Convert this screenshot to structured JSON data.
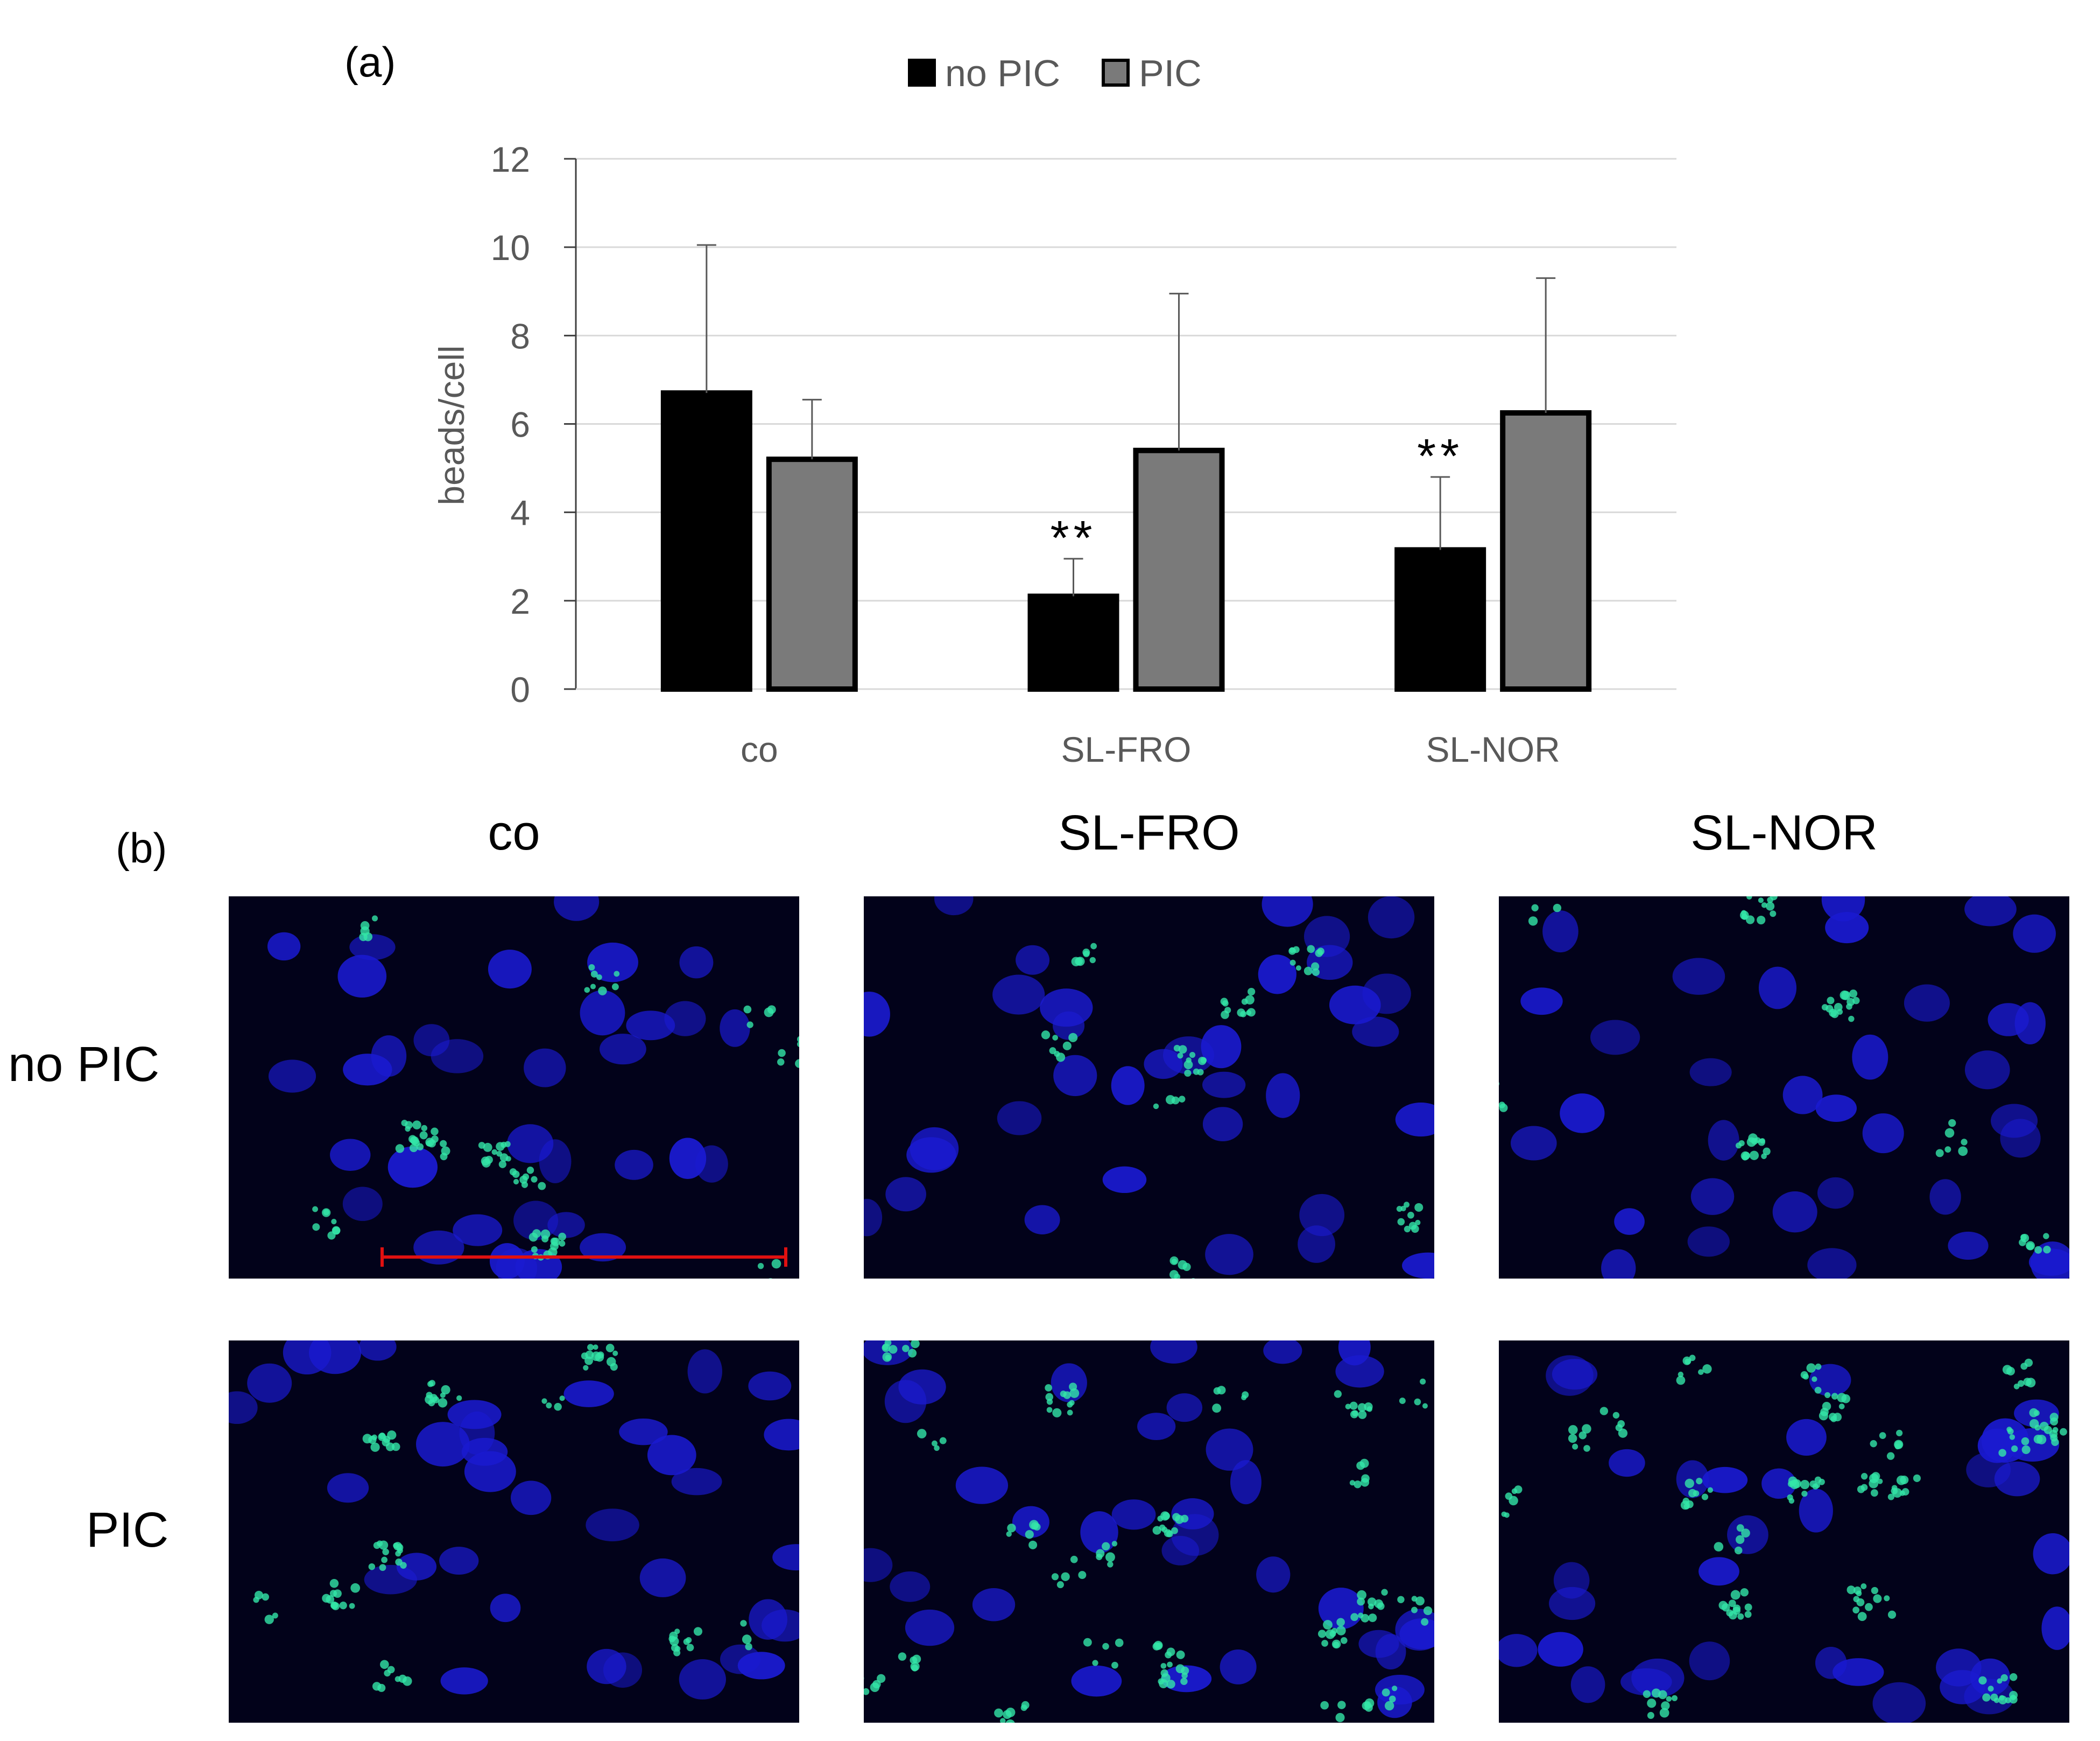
{
  "panel_a_label": "(a)",
  "panel_b_label": "(b)",
  "colors": {
    "no_pic": "#000000",
    "pic": "#7a7a7a",
    "nucleus": "#1a1ad0",
    "bead": "#33e6a8",
    "scale_bar": "#e01010"
  },
  "chart_data": {
    "type": "bar",
    "categories": [
      "co",
      "SL-FRO",
      "SL-NOR"
    ],
    "series": [
      {
        "name": "no PIC",
        "values": [
          6.7,
          2.1,
          3.15
        ],
        "error_plus": [
          3.35,
          0.85,
          1.65
        ]
      },
      {
        "name": "PIC",
        "values": [
          5.2,
          5.4,
          6.25
        ],
        "error_plus": [
          1.35,
          3.55,
          3.05
        ]
      }
    ],
    "significance": [
      "",
      "**",
      "**"
    ],
    "ylabel": "beads/cell",
    "ylim": [
      0,
      12
    ],
    "yticks": [
      "0",
      "2",
      "4",
      "6",
      "8",
      "10",
      "12"
    ],
    "legend_position": "top",
    "grid": true
  },
  "micrographs": {
    "columns": [
      "co",
      "SL-FRO",
      "SL-NOR"
    ],
    "rows": [
      "no PIC",
      "PIC"
    ]
  }
}
